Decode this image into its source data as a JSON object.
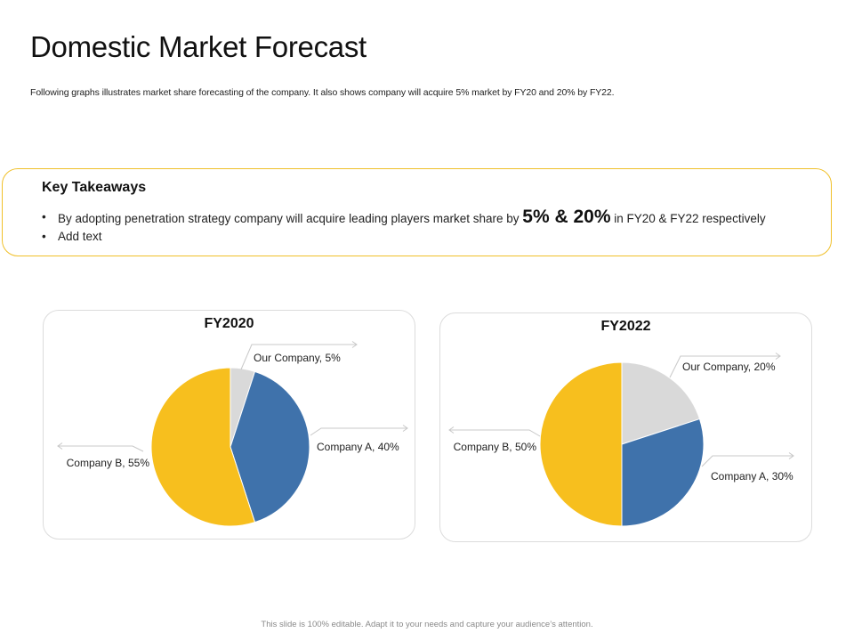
{
  "header": {
    "title": "Domestic Market Forecast",
    "subtitle": "Following graphs illustrates market share forecasting of the company. It also shows company will acquire 5% market by FY20 and 20% by FY22."
  },
  "takeaways": {
    "heading": "Key Takeaways",
    "bullets": [
      {
        "pre": "By adopting penetration strategy company will acquire leading players market share by ",
        "highlight": "5% & 20%",
        "post": " in FY20 & FY22 respectively"
      },
      {
        "pre": "Add text"
      }
    ]
  },
  "footer": "This slide is 100% editable. Adapt it to your needs and capture your audience’s attention.",
  "colors": {
    "our_company": "#d9d9d9",
    "company_a": "#3f72ab",
    "company_b": "#f7bf1e",
    "accent_border": "#f0c02a"
  },
  "chart_data": [
    {
      "type": "pie",
      "title": "FY2020",
      "slices": [
        {
          "label": "Our Company",
          "value": 5,
          "text": "Our Company, 5%"
        },
        {
          "label": "Company A",
          "value": 40,
          "text": "Company A, 40%"
        },
        {
          "label": "Company B",
          "value": 55,
          "text": "Company B, 55%"
        }
      ]
    },
    {
      "type": "pie",
      "title": "FY2022",
      "slices": [
        {
          "label": "Our Company",
          "value": 20,
          "text": "Our Company, 20%"
        },
        {
          "label": "Company A",
          "value": 30,
          "text": "Company A, 30%"
        },
        {
          "label": "Company B",
          "value": 50,
          "text": "Company B, 50%"
        }
      ]
    }
  ]
}
